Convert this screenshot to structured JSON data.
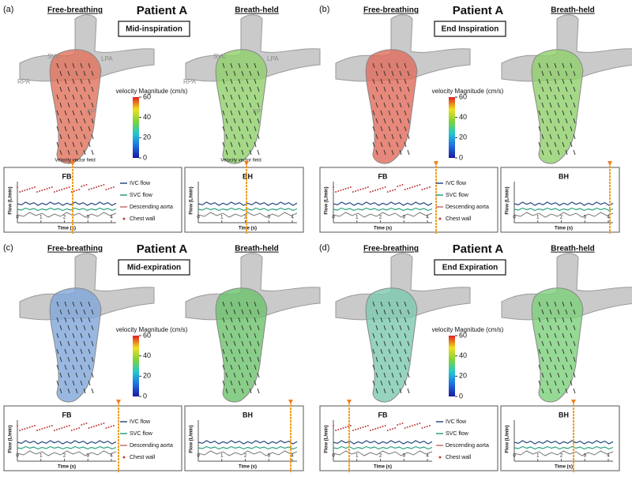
{
  "panels": [
    {
      "label": "(a)",
      "left_title": "Free-breathing",
      "patient": "Patient A",
      "phase": "Mid-inspiration",
      "right_title": "Breath-held",
      "fb_color": "#e0705a",
      "bh_color": "#8fcf6a",
      "vessel_labels_left": [
        "SVC",
        "LPA",
        "RPA",
        "FP"
      ],
      "vessel_labels_right": [
        "SVC",
        "LPA",
        "RPA",
        "FP"
      ],
      "captions": [
        "Velocity vector field",
        "Velocity vector field"
      ],
      "colorbar": {
        "title": "velocity Magnitude (cm/s)",
        "ticks": [
          60,
          40,
          20,
          0
        ]
      },
      "fb_plot": {
        "title": "FB",
        "ylabel": "Flow (L/min)",
        "xlabel": "Time (s)",
        "xticks": [
          0,
          1,
          2,
          3,
          4
        ]
      },
      "bh_plot": {
        "title": "BH",
        "ylabel": "Flow (L/min)",
        "xlabel": "Time (s)",
        "xticks": [
          0,
          1,
          2,
          3,
          4
        ]
      },
      "legend": [
        "IVC flow",
        "SVC flow",
        "Descending aorta",
        "Chest wall"
      ]
    },
    {
      "label": "(b)",
      "left_title": "Free-breathing",
      "patient": "Patient A",
      "phase": "End Inspiration",
      "right_title": "Breath-held",
      "fb_color": "#e06a5a",
      "bh_color": "#8fcf6a",
      "colorbar": {
        "title": "velocity Magnitude (cm/s)",
        "ticks": [
          60,
          40,
          20,
          0
        ]
      },
      "fb_plot": {
        "title": "FB",
        "ylabel": "Flow (L/min)",
        "xlabel": "Time (s)",
        "xticks": [
          0,
          1,
          2,
          3,
          4
        ]
      },
      "bh_plot": {
        "title": "BH",
        "ylabel": "Flow (L/min)",
        "xlabel": "Time (s)",
        "xticks": [
          0,
          1,
          2,
          3,
          4
        ]
      },
      "legend": [
        "IVC flow",
        "SVC flow",
        "Descending aorta",
        "Chest wall"
      ]
    },
    {
      "label": "(c)",
      "left_title": "Free-breathing",
      "patient": "Patient A",
      "phase": "Mid-expiration",
      "right_title": "Breath-held",
      "fb_color": "#7fa6d9",
      "bh_color": "#6cc26a",
      "colorbar": {
        "title": "velocity Magnitude (cm/s)",
        "ticks": [
          60,
          40,
          20,
          0
        ]
      },
      "fb_plot": {
        "title": "FB",
        "ylabel": "Flow (L/min)",
        "xlabel": "Time (s)",
        "xticks": [
          0,
          1,
          2,
          3,
          4
        ]
      },
      "bh_plot": {
        "title": "BH",
        "ylabel": "Flow (L/min)",
        "xlabel": "Time (s)",
        "xticks": [
          0,
          1,
          2,
          3,
          4
        ]
      },
      "legend": [
        "IVC flow",
        "SVC flow",
        "Descending aorta",
        "Chest wall"
      ]
    },
    {
      "label": "(d)",
      "left_title": "Free-breathing",
      "patient": "Patient A",
      "phase": "End Expiration",
      "right_title": "Breath-held",
      "fb_color": "#7cc9b0",
      "bh_color": "#7ccf7a",
      "colorbar": {
        "title": "velocity Magnitude (cm/s)",
        "ticks": [
          60,
          40,
          20,
          0
        ]
      },
      "fb_plot": {
        "title": "FB",
        "ylabel": "Flow (L/min)",
        "xlabel": "Time (s)",
        "xticks": [
          0,
          1,
          2,
          3,
          4
        ]
      },
      "bh_plot": {
        "title": "BH",
        "ylabel": "Flow (L/min)",
        "xlabel": "Time (s)",
        "xticks": [
          0,
          1,
          2,
          3,
          4
        ]
      },
      "legend": [
        "IVC flow",
        "SVC flow",
        "Descending aorta",
        "Chest wall"
      ]
    }
  ]
}
